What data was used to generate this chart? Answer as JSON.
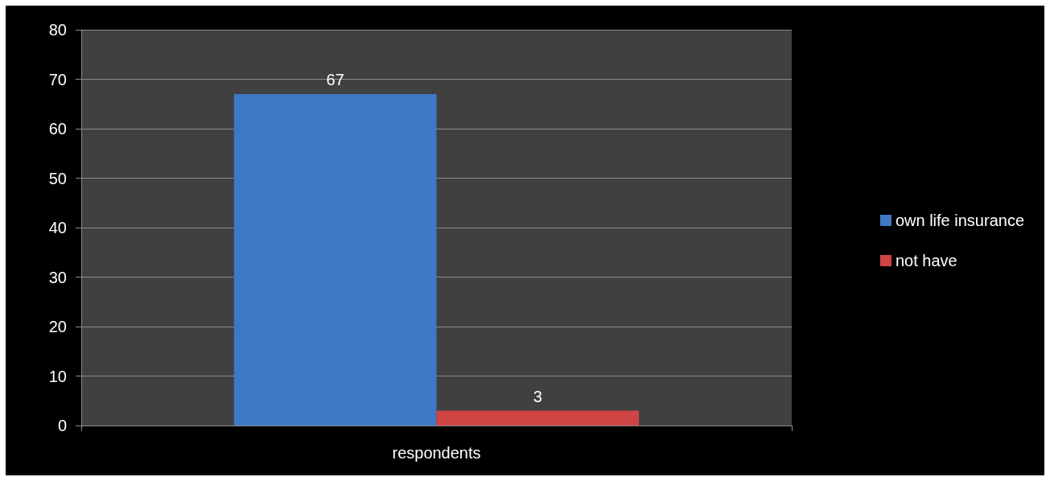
{
  "chart_data": {
    "type": "bar",
    "categories": [
      "respondents"
    ],
    "series": [
      {
        "name": "own life insurance",
        "color": "#3f79c6",
        "values": [
          67
        ]
      },
      {
        "name": "not have",
        "color": "#cf4544",
        "values": [
          3
        ]
      }
    ],
    "ylim": [
      0,
      80
    ],
    "yticks": [
      0,
      10,
      20,
      30,
      40,
      50,
      60,
      70,
      80
    ],
    "grid": "y",
    "legend": "right",
    "data_labels": true
  }
}
